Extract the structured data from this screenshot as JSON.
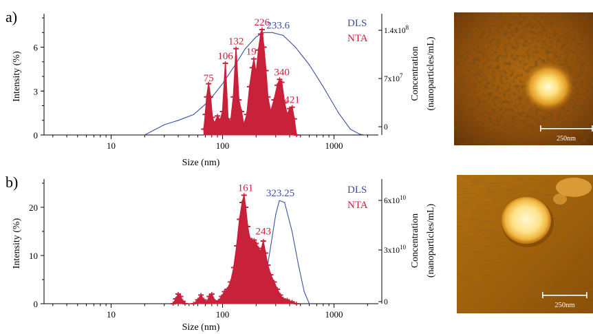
{
  "colors": {
    "dls": "#3a4fa3",
    "nta": "#c8213a",
    "axis": "#000000",
    "afm_dark": "#3a1c06",
    "afm_mid": "#a8620f",
    "afm_light": "#fff2c0"
  },
  "chart_data": [
    {
      "type": "line",
      "panel_label": "a)",
      "x_scale": "log",
      "xlim": [
        2.5,
        2500
      ],
      "x_ticks": [
        "10",
        "100",
        "1000"
      ],
      "xlabel": "Size (nm)",
      "ylabel_left": "Intensity (%)",
      "ylim_left": [
        0,
        8
      ],
      "y_ticks_left": [
        "0",
        "3",
        "6"
      ],
      "ylabel_right": "Concentration (nanoparticles/mL)",
      "y_ticks_right": [
        "0",
        "7x10^7",
        "1.4x10^8"
      ],
      "legend": [
        "DLS",
        "NTA"
      ],
      "peak_labels": [
        {
          "text": "75",
          "x": 75,
          "y": 3.4
        },
        {
          "text": "106",
          "x": 106,
          "y": 4.9
        },
        {
          "text": "132",
          "x": 132,
          "y": 5.9
        },
        {
          "text": "191",
          "x": 191,
          "y": 5.2
        },
        {
          "text": "226",
          "x": 226,
          "y": 7.2
        },
        {
          "text": "233.6",
          "x": 315,
          "y": 7.0
        },
        {
          "text": "340",
          "x": 340,
          "y": 3.8
        },
        {
          "text": "421",
          "x": 421,
          "y": 1.9
        }
      ],
      "series": [
        {
          "name": "DLS",
          "x": [
            20,
            30,
            40,
            55,
            75,
            100,
            130,
            160,
            200,
            233.6,
            280,
            350,
            450,
            600,
            800,
            1100,
            1400,
            1700,
            1900
          ],
          "values": [
            0,
            0.7,
            1.0,
            1.4,
            2.3,
            3.5,
            4.8,
            5.9,
            6.7,
            7.0,
            7.0,
            6.8,
            6.0,
            4.8,
            3.3,
            1.5,
            0.4,
            0.05,
            0
          ]
        },
        {
          "name": "NTA",
          "x": [
            68,
            70,
            72,
            75,
            78,
            81,
            85,
            90,
            95,
            100,
            106,
            112,
            118,
            125,
            132,
            140,
            148,
            155,
            165,
            175,
            185,
            191,
            200,
            210,
            220,
            226,
            235,
            245,
            255,
            270,
            290,
            310,
            325,
            340,
            360,
            380,
            400,
            421,
            440,
            460
          ],
          "values": [
            0.4,
            1.4,
            2.6,
            3.5,
            2.6,
            1.2,
            0.8,
            1.3,
            1.0,
            1.6,
            4.9,
            1.1,
            0.9,
            2.6,
            5.9,
            2.4,
            1.6,
            0.7,
            1.4,
            3.3,
            4.6,
            5.2,
            4.2,
            5.8,
            6.9,
            7.2,
            6.0,
            4.4,
            2.6,
            1.6,
            2.4,
            3.4,
            3.8,
            3.6,
            2.2,
            1.4,
            1.8,
            1.9,
            1.1,
            0
          ]
        }
      ]
    },
    {
      "type": "line",
      "panel_label": "b)",
      "x_scale": "log",
      "xlim": [
        2.5,
        2500
      ],
      "x_ticks": [
        "10",
        "100",
        "1000"
      ],
      "xlabel": "Size (nm)",
      "ylabel_left": "Intensity (%)",
      "ylim_left": [
        0,
        25
      ],
      "y_ticks_left": [
        "0",
        "10",
        "20"
      ],
      "ylabel_right": "Concentration (nanoparticles/mL)",
      "y_ticks_right": [
        "0",
        "3x10^10",
        "6x10^10"
      ],
      "legend": [
        "DLS",
        "NTA"
      ],
      "peak_labels": [
        {
          "text": "161",
          "x": 161,
          "y": 22.5
        },
        {
          "text": "243",
          "x": 232,
          "y": 13.5
        },
        {
          "text": "323.25",
          "x": 330,
          "y": 21.4
        }
      ],
      "series": [
        {
          "name": "DLS",
          "x": [
            35,
            60,
            100,
            130,
            160,
            200,
            250,
            300,
            323.25,
            360,
            420,
            480,
            540,
            600
          ],
          "values": [
            0,
            0,
            0,
            0,
            0.2,
            1.5,
            7.0,
            18.5,
            21.4,
            21.0,
            15.0,
            8.0,
            2.5,
            0
          ]
        },
        {
          "name": "NTA",
          "x": [
            36,
            38,
            40,
            42,
            44,
            46,
            55,
            60,
            64,
            68,
            72,
            76,
            80,
            86,
            92,
            98,
            104,
            110,
            118,
            126,
            134,
            142,
            150,
            156,
            161,
            168,
            176,
            184,
            192,
            200,
            210,
            220,
            232,
            243,
            255,
            270,
            290,
            310,
            330,
            350,
            380,
            420,
            460
          ],
          "values": [
            0,
            1.0,
            2.0,
            1.5,
            0.5,
            0,
            0,
            0.8,
            1.8,
            0.8,
            0.3,
            1.5,
            2.0,
            0.5,
            0.6,
            1.5,
            2.5,
            3.0,
            4.5,
            7.5,
            12.0,
            17.5,
            21.0,
            22.5,
            20.0,
            16.0,
            13.5,
            13.0,
            13.2,
            12.5,
            11.5,
            10.8,
            13.0,
            10.5,
            8.0,
            6.0,
            4.5,
            3.0,
            1.8,
            1.0,
            0.8,
            0.4,
            0
          ]
        }
      ]
    }
  ],
  "afm_images": [
    {
      "scale_bar_label": "250nm"
    },
    {
      "scale_bar_label": "250nm"
    }
  ]
}
